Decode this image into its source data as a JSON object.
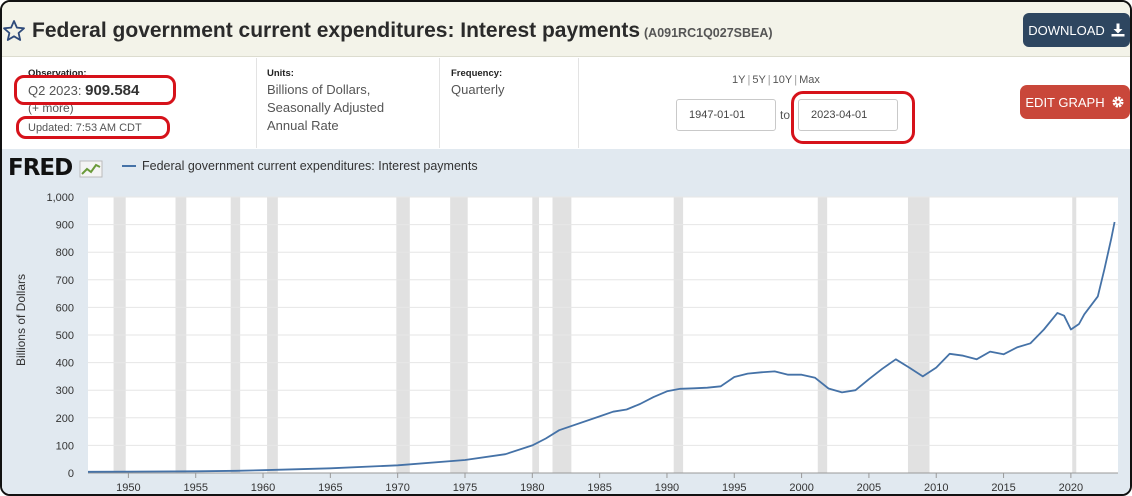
{
  "header": {
    "title": "Federal government current expenditures: Interest payments",
    "series_id": "(A091RC1Q027SBEA)",
    "download_label": "DOWNLOAD"
  },
  "observation": {
    "label": "Observation:",
    "period": "Q2 2023:",
    "value": "909.584",
    "more": "(+ more)",
    "updated": "Updated: 7:53 AM CDT"
  },
  "units": {
    "label": "Units:",
    "lines": [
      "Billions of Dollars,",
      "Seasonally Adjusted",
      "Annual Rate"
    ]
  },
  "frequency": {
    "label": "Frequency:",
    "value": "Quarterly"
  },
  "range": {
    "links": [
      "1Y",
      "5Y",
      "10Y",
      "Max"
    ],
    "start": "1947-01-01",
    "to_label": "to",
    "end": "2023-04-01"
  },
  "edit_label": "EDIT GRAPH",
  "chart_panel": {
    "logo": "FRED",
    "legend": "Federal government current expenditures: Interest payments"
  },
  "chart_data": {
    "type": "line",
    "title": "",
    "xlabel": "",
    "ylabel": "Billions of Dollars",
    "xlim": [
      1947.0,
      2023.5
    ],
    "ylim": [
      0,
      1000
    ],
    "y_ticks": [
      0,
      100,
      200,
      300,
      400,
      500,
      600,
      700,
      800,
      900,
      1000
    ],
    "y_tick_labels": [
      "0",
      "100",
      "200",
      "300",
      "400",
      "500",
      "600",
      "700",
      "800",
      "900",
      "1,000"
    ],
    "x_ticks": [
      1950,
      1955,
      1960,
      1965,
      1970,
      1975,
      1980,
      1985,
      1990,
      1995,
      2000,
      2005,
      2010,
      2015,
      2020
    ],
    "x_tick_labels": [
      "1950",
      "1955",
      "1960",
      "1965",
      "1970",
      "1975",
      "1980",
      "1985",
      "1990",
      "1995",
      "2000",
      "2005",
      "2010",
      "2015",
      "2020"
    ],
    "grid": true,
    "legend": "top-left",
    "line_color": "#4572a7",
    "recession_color": "#e1e1e1",
    "recessions": [
      [
        1948.9,
        1949.8
      ],
      [
        1953.5,
        1954.3
      ],
      [
        1957.6,
        1958.3
      ],
      [
        1960.3,
        1961.1
      ],
      [
        1969.9,
        1970.9
      ],
      [
        1973.9,
        1975.2
      ],
      [
        1980.0,
        1980.5
      ],
      [
        1981.5,
        1982.9
      ],
      [
        1990.5,
        1991.2
      ],
      [
        2001.2,
        2001.9
      ],
      [
        2007.9,
        2009.5
      ],
      [
        2020.1,
        2020.4
      ]
    ],
    "series": [
      {
        "name": "Federal government current expenditures: Interest payments",
        "x": [
          1947.0,
          1950,
          1955,
          1958,
          1960,
          1965,
          1970,
          1975,
          1978,
          1980,
          1981,
          1982,
          1985,
          1986,
          1987,
          1988,
          1989,
          1990,
          1991,
          1992,
          1993,
          1994,
          1995,
          1996,
          1997,
          1998,
          1999,
          2000,
          2001,
          2002,
          2003,
          2004,
          2005,
          2006,
          2007,
          2008,
          2009,
          2010,
          2011,
          2012,
          2013,
          2014,
          2015,
          2016,
          2017,
          2018,
          2019,
          2019.5,
          2020,
          2020.6,
          2021,
          2022,
          2022.5,
          2023.0,
          2023.25
        ],
        "y": [
          4.5,
          5,
          6,
          8,
          10,
          17,
          28,
          47,
          68,
          100,
          125,
          155,
          205,
          222,
          230,
          250,
          275,
          296,
          305,
          307,
          309,
          314,
          348,
          360,
          365,
          368,
          356,
          356,
          345,
          306,
          292,
          300,
          340,
          378,
          412,
          382,
          350,
          382,
          432,
          425,
          412,
          440,
          430,
          455,
          470,
          520,
          580,
          570,
          520,
          540,
          575,
          640,
          740,
          850,
          909.584
        ]
      }
    ]
  }
}
